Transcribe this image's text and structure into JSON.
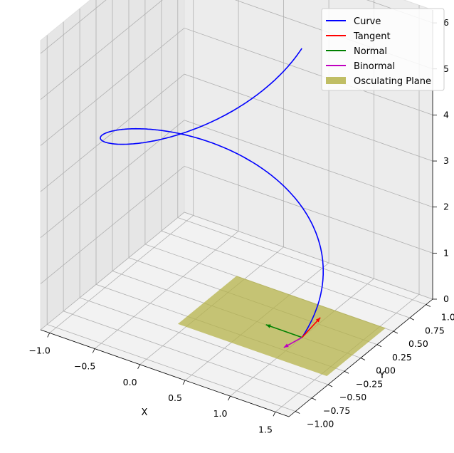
{
  "chart_data": {
    "type": "line3d",
    "title": "",
    "xlabel": "X",
    "ylabel": "Y",
    "zlabel": "",
    "xlim": [
      -1.1,
      1.65
    ],
    "ylim": [
      -1.1,
      1.1
    ],
    "zlim": [
      0,
      6.28
    ],
    "x_ticks": [
      -1.0,
      -0.5,
      0.0,
      0.5,
      1.0,
      1.5
    ],
    "x_tick_labels": [
      "−1.0",
      "−0.5",
      "0.0",
      "0.5",
      "1.0",
      "1.5"
    ],
    "y_ticks": [
      -1.0,
      -0.75,
      -0.5,
      -0.25,
      0.0,
      0.25,
      0.5,
      0.75,
      1.0
    ],
    "y_tick_labels": [
      "−1.00",
      "−0.75",
      "−0.50",
      "−0.25",
      "0.00",
      "0.25",
      "0.50",
      "0.75",
      "1.00"
    ],
    "z_ticks": [
      0,
      1,
      2,
      3,
      4,
      5,
      6
    ],
    "z_tick_labels": [
      "0",
      "1",
      "2",
      "3",
      "4",
      "5",
      "6"
    ],
    "grid": true,
    "legend_position": "top-right",
    "series": [
      {
        "name": "Curve",
        "kind": "helix",
        "x": "cos(t)",
        "y": "sin(t)",
        "z": "t",
        "t_range": [
          0,
          6.28
        ],
        "color": "#0000ff"
      },
      {
        "name": "Tangent",
        "kind": "arrow",
        "origin": [
          1,
          0,
          0
        ],
        "direction": [
          0,
          0.7,
          0.7
        ],
        "color": "#ff0000"
      },
      {
        "name": "Normal",
        "kind": "arrow",
        "origin": [
          1,
          0,
          0
        ],
        "direction": [
          -1,
          0,
          0
        ],
        "color": "#008000"
      },
      {
        "name": "Binormal",
        "kind": "arrow",
        "origin": [
          1,
          0,
          0
        ],
        "direction": [
          0,
          -0.7,
          0.7
        ],
        "color": "#bf00bf"
      },
      {
        "name": "Osculating Plane",
        "kind": "plane",
        "center": [
          1,
          0,
          0
        ],
        "color": "#b5b34a"
      }
    ]
  }
}
